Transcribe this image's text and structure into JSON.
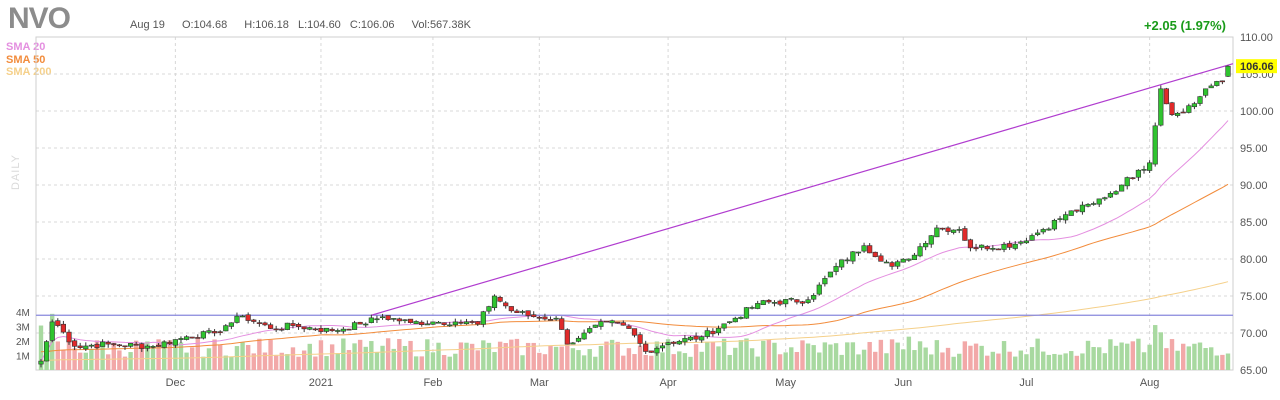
{
  "header": {
    "ticker": "NVO",
    "date": "Aug 19",
    "open": "O:104.68",
    "high": "H:106.18",
    "low": "L:104.60",
    "close": "C:106.06",
    "volume": "Vol:567.38K",
    "change": "+2.05 (1.97%)"
  },
  "legend": {
    "sma20": "SMA 20",
    "sma50": "SMA 50",
    "sma200": "SMA 200",
    "timeframe": "DAILY"
  },
  "colors": {
    "up": "#2fc42f",
    "down": "#e02a2a",
    "vol_up": "#a8d9a0",
    "vol_down": "#f2a8a8",
    "sma20": "#e48fe0",
    "sma50": "#f28c3c",
    "sma200": "#f5d08a",
    "trendline": "#b03ccf",
    "hline": "#8888dd",
    "price_tag": "#ffff00"
  },
  "chart_data": {
    "type": "candlestick",
    "price_axis": {
      "min": 65,
      "max": 110,
      "ticks": [
        "110.00",
        "105.00",
        "100.00",
        "95.00",
        "90.00",
        "85.00",
        "80.00",
        "75.00",
        "70.00",
        "65.00"
      ]
    },
    "volume_axis": {
      "ticks": [
        "4M",
        "3M",
        "2M",
        "1M"
      ]
    },
    "x_labels": [
      {
        "label": "Dec",
        "i": 24
      },
      {
        "label": "2021",
        "i": 50
      },
      {
        "label": "Feb",
        "i": 70
      },
      {
        "label": "Mar",
        "i": 89
      },
      {
        "label": "Apr",
        "i": 112
      },
      {
        "label": "May",
        "i": 133
      },
      {
        "label": "Jun",
        "i": 154
      },
      {
        "label": "Jul",
        "i": 176
      },
      {
        "label": "Aug",
        "i": 198
      }
    ],
    "last_price": "106.06",
    "key_points": [
      {
        "i": 0,
        "c": 66.2
      },
      {
        "i": 2,
        "c": 71.5
      },
      {
        "i": 3,
        "c": 71.0
      },
      {
        "i": 6,
        "c": 68.2
      },
      {
        "i": 12,
        "c": 68.5
      },
      {
        "i": 20,
        "c": 68.2
      },
      {
        "i": 26,
        "c": 69.5
      },
      {
        "i": 31,
        "c": 70.0
      },
      {
        "i": 33,
        "c": 71.0
      },
      {
        "i": 36,
        "c": 72.3
      },
      {
        "i": 41,
        "c": 70.6
      },
      {
        "i": 45,
        "c": 71.0
      },
      {
        "i": 52,
        "c": 70.3
      },
      {
        "i": 57,
        "c": 71.2
      },
      {
        "i": 61,
        "c": 72.2
      },
      {
        "i": 66,
        "c": 71.4
      },
      {
        "i": 70,
        "c": 71.5
      },
      {
        "i": 74,
        "c": 71.5
      },
      {
        "i": 78,
        "c": 71.2
      },
      {
        "i": 81,
        "c": 75.0
      },
      {
        "i": 84,
        "c": 73.0
      },
      {
        "i": 88,
        "c": 72.2
      },
      {
        "i": 92,
        "c": 72.0
      },
      {
        "i": 94,
        "c": 68.5
      },
      {
        "i": 97,
        "c": 70.0
      },
      {
        "i": 101,
        "c": 71.5
      },
      {
        "i": 105,
        "c": 70.6
      },
      {
        "i": 108,
        "c": 67.5
      },
      {
        "i": 112,
        "c": 68.7
      },
      {
        "i": 118,
        "c": 69.5
      },
      {
        "i": 124,
        "c": 72.0
      },
      {
        "i": 128,
        "c": 74.0
      },
      {
        "i": 137,
        "c": 74.5
      },
      {
        "i": 142,
        "c": 79.0
      },
      {
        "i": 147,
        "c": 81.8
      },
      {
        "i": 152,
        "c": 79.0
      },
      {
        "i": 155,
        "c": 80.0
      },
      {
        "i": 160,
        "c": 84.2
      },
      {
        "i": 164,
        "c": 84.0
      },
      {
        "i": 166,
        "c": 81.5
      },
      {
        "i": 174,
        "c": 82.0
      },
      {
        "i": 179,
        "c": 84.0
      },
      {
        "i": 183,
        "c": 86.0
      },
      {
        "i": 188,
        "c": 87.5
      },
      {
        "i": 193,
        "c": 90.0
      },
      {
        "i": 196,
        "c": 92.0
      },
      {
        "i": 198,
        "c": 93.0
      },
      {
        "i": 199,
        "c": 98.0
      },
      {
        "i": 200,
        "c": 103.0
      },
      {
        "i": 202,
        "c": 99.5
      },
      {
        "i": 206,
        "c": 101.0
      },
      {
        "i": 208,
        "c": 103.0
      },
      {
        "i": 210,
        "c": 104.0
      },
      {
        "i": 211,
        "c": 104.0
      },
      {
        "i": 212,
        "c": 106.06
      }
    ]
  }
}
